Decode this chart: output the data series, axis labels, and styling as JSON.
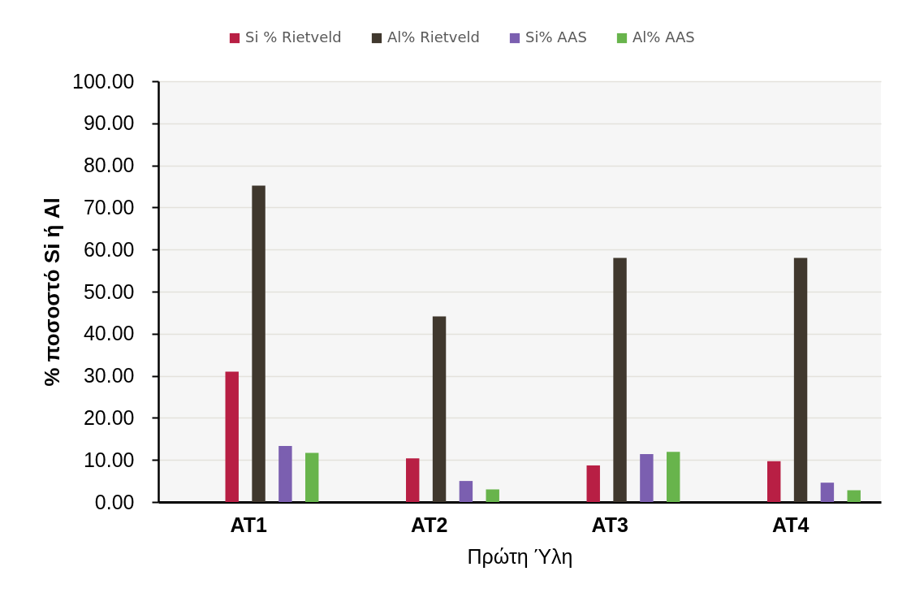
{
  "chart_data": {
    "type": "bar",
    "xlabel": "Πρώτη Ύλη",
    "ylabel": "% ποσοστό  Si ή Al",
    "categories": [
      "AT1",
      "AT2",
      "AT3",
      "AT4"
    ],
    "series": [
      {
        "name": "Si % Rietveld",
        "color": "#b81f44",
        "values": [
          31.0,
          10.4,
          8.7,
          9.7
        ]
      },
      {
        "name": "Al% Rietveld",
        "color": "#40382e",
        "values": [
          75.2,
          44.1,
          58.0,
          58.0
        ]
      },
      {
        "name": "Si% AAS",
        "color": "#7b5fb0",
        "values": [
          13.3,
          5.0,
          11.4,
          4.6
        ]
      },
      {
        "name": "Al% AAS",
        "color": "#68b44c",
        "values": [
          11.7,
          3.0,
          11.9,
          2.8
        ]
      }
    ],
    "ylim": [
      0,
      100
    ],
    "yticks": [
      {
        "value": 0,
        "label": "0.00"
      },
      {
        "value": 10,
        "label": "10.00"
      },
      {
        "value": 20,
        "label": "20.00"
      },
      {
        "value": 30,
        "label": "30.00"
      },
      {
        "value": 40,
        "label": "40.00"
      },
      {
        "value": 50,
        "label": "50.00"
      },
      {
        "value": 60,
        "label": "60.00"
      },
      {
        "value": 70,
        "label": "70.00"
      },
      {
        "value": 80,
        "label": "80.00"
      },
      {
        "value": 90,
        "label": "90.00"
      },
      {
        "value": 100,
        "label": "100.00"
      }
    ],
    "grid": "y",
    "legend": "top"
  }
}
